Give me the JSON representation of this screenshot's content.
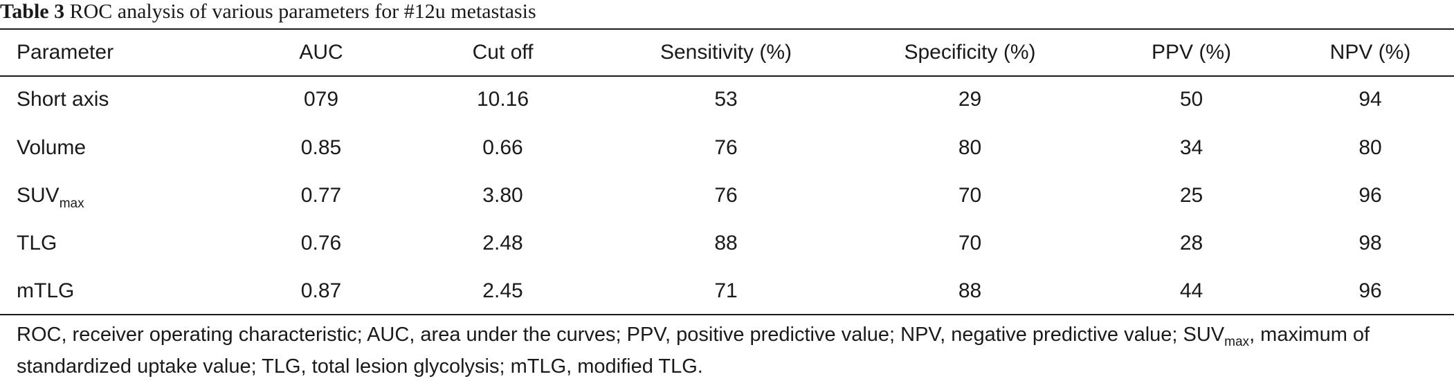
{
  "caption": {
    "label": "Table 3",
    "title": "ROC analysis of various parameters for #12u metastasis"
  },
  "table": {
    "headers": [
      "Parameter",
      "AUC",
      "Cut off",
      "Sensitivity (%)",
      "Specificity (%)",
      "PPV (%)",
      "NPV (%)"
    ],
    "rows": [
      {
        "param": "Short axis",
        "sub": "",
        "cells": [
          "079",
          "10.16",
          "53",
          "29",
          "50",
          "94"
        ]
      },
      {
        "param": "Volume",
        "sub": "",
        "cells": [
          "0.85",
          "0.66",
          "76",
          "80",
          "34",
          "80"
        ]
      },
      {
        "param": "SUV",
        "sub": "max",
        "cells": [
          "0.77",
          "3.80",
          "76",
          "70",
          "25",
          "96"
        ]
      },
      {
        "param": "TLG",
        "sub": "",
        "cells": [
          "0.76",
          "2.48",
          "88",
          "70",
          "28",
          "98"
        ]
      },
      {
        "param": "mTLG",
        "sub": "",
        "cells": [
          "0.87",
          "2.45",
          "71",
          "88",
          "44",
          "96"
        ]
      }
    ]
  },
  "footnote": {
    "part1": "ROC, receiver operating characteristic; AUC, area under the curves; PPV, positive predictive value; NPV, negative predictive value; SUV",
    "sub": "max",
    "part2": ", maximum of standardized uptake value; TLG, total lesion glycolysis; mTLG, modified TLG."
  }
}
